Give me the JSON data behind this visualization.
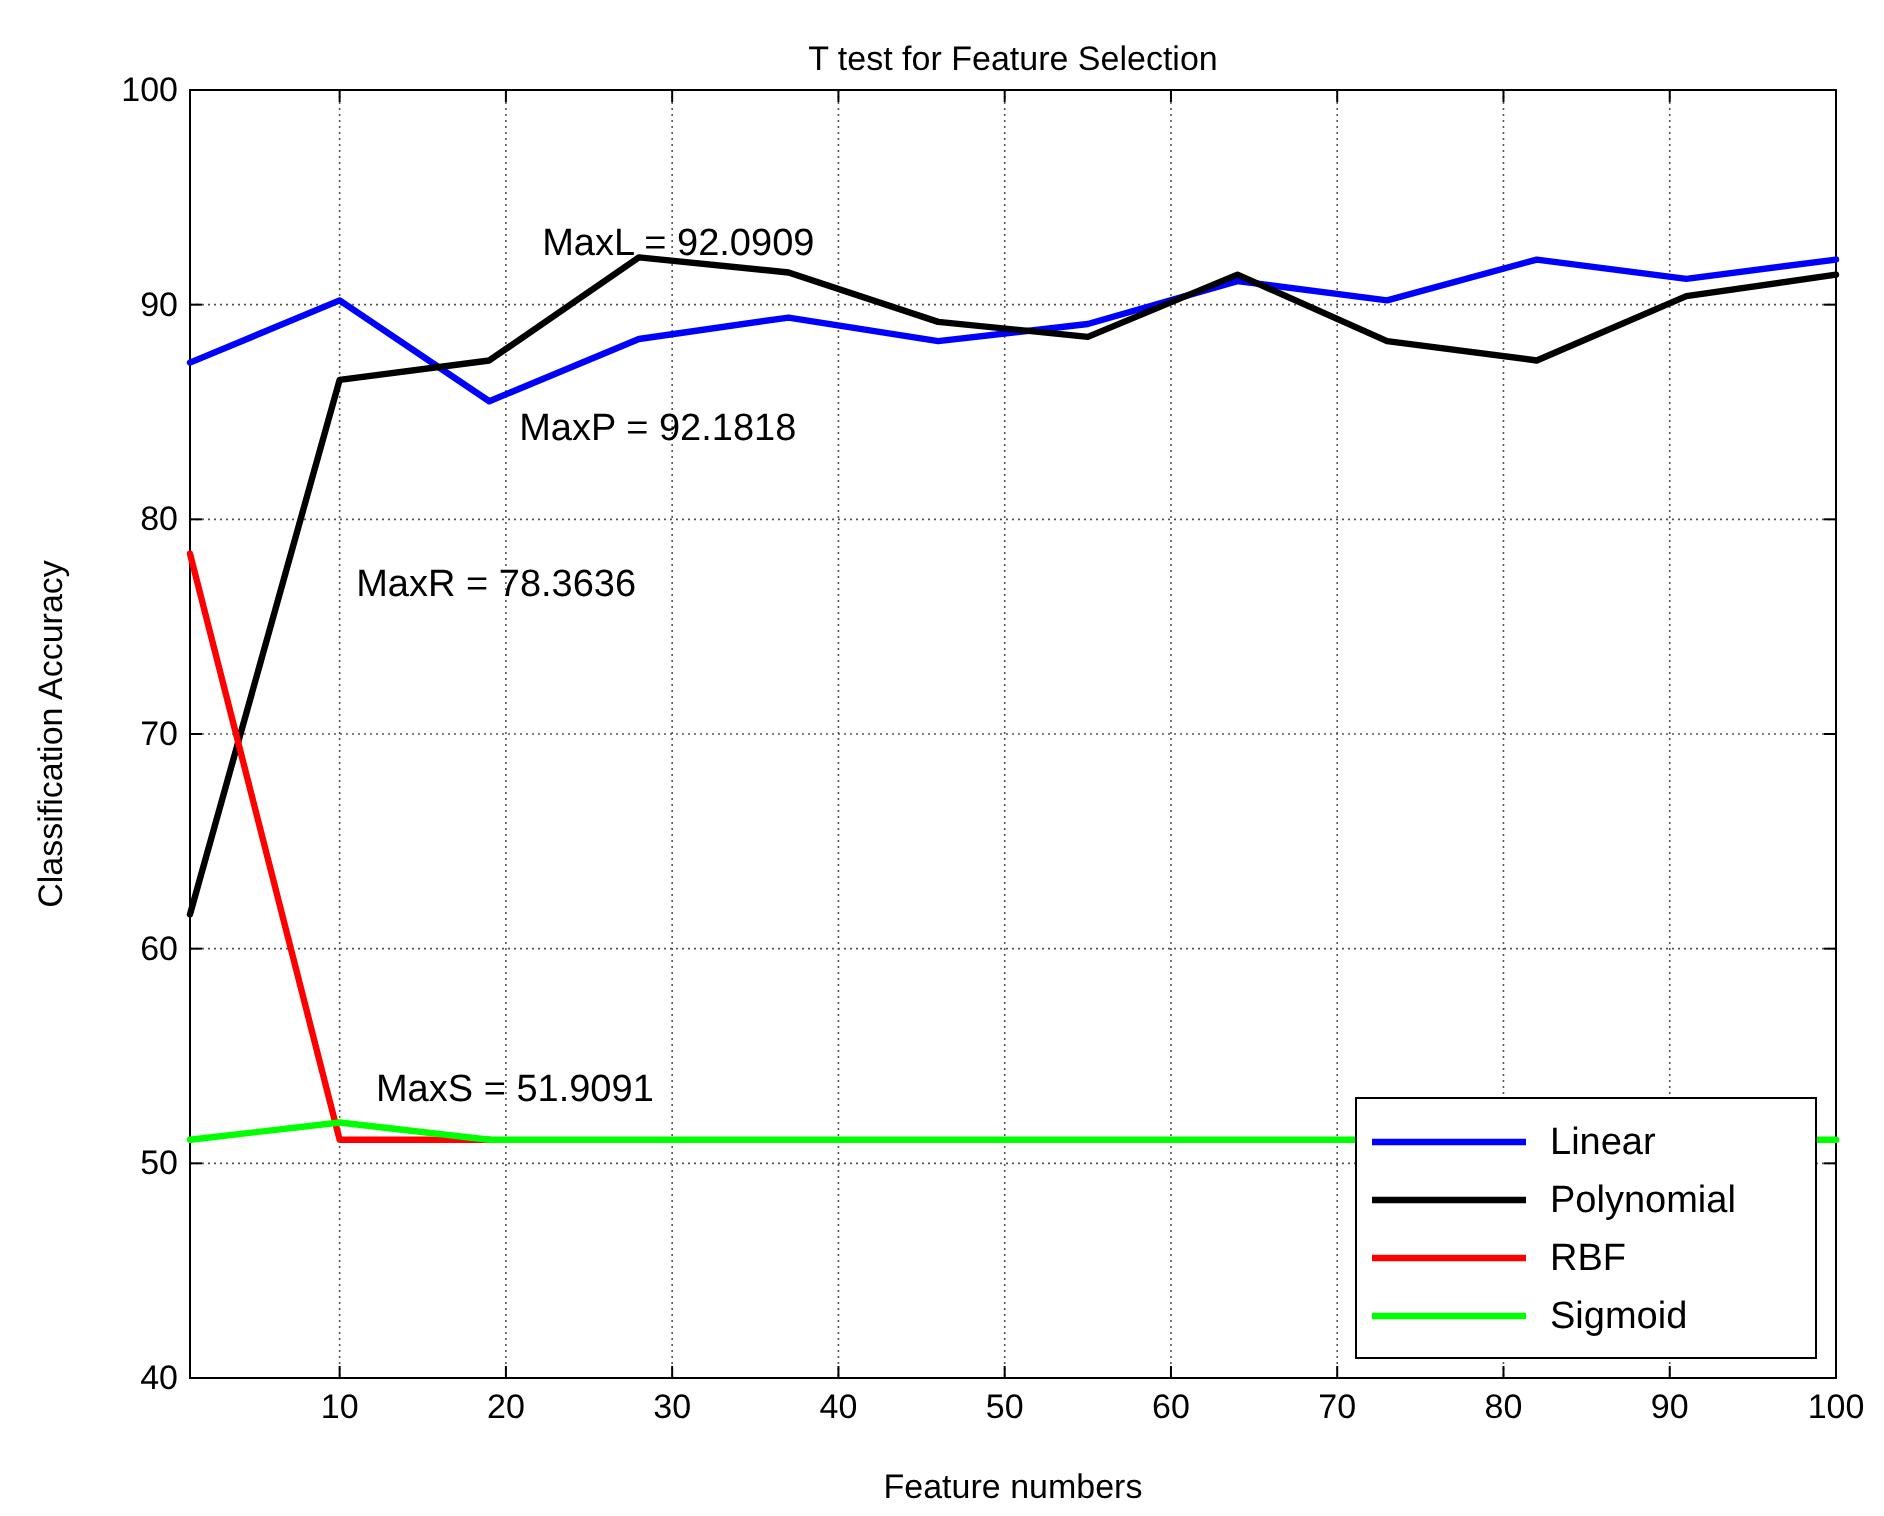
{
  "chart_data": {
    "type": "line",
    "title": "T test for Feature Selection",
    "xlabel": "Feature numbers",
    "ylabel": "Classification Accuracy",
    "x": [
      1,
      10,
      19,
      28,
      37,
      46,
      55,
      64,
      73,
      82,
      91,
      100
    ],
    "xlim": [
      1,
      100
    ],
    "xticks": [
      10,
      20,
      30,
      40,
      50,
      60,
      70,
      80,
      90,
      100
    ],
    "ylim": [
      40,
      100
    ],
    "yticks": [
      40,
      50,
      60,
      70,
      80,
      90,
      100
    ],
    "grid": true,
    "legend": "bottom right",
    "line_style": "solid",
    "marker": "none",
    "series": [
      {
        "name": "Linear",
        "color": "#0000ff",
        "values": [
          87.3,
          90.2,
          85.5,
          88.4,
          89.4,
          88.3,
          89.1,
          91.1,
          90.2,
          92.1,
          91.2,
          92.1
        ]
      },
      {
        "name": "Polynomial",
        "color": "#000000",
        "values": [
          61.6,
          86.5,
          87.4,
          92.2,
          91.5,
          89.2,
          88.5,
          91.4,
          88.3,
          87.4,
          90.4,
          91.4
        ]
      },
      {
        "name": "RBF",
        "color": "#ff0000",
        "values": [
          78.4,
          51.1,
          51.1,
          null,
          null,
          null,
          null,
          null,
          null,
          null,
          null,
          null
        ]
      },
      {
        "name": "Sigmoid",
        "color": "#00ff00",
        "values": [
          51.1,
          51.9,
          51.1,
          51.1,
          51.1,
          51.1,
          51.1,
          51.1,
          null,
          null,
          null,
          51.1
        ]
      }
    ],
    "annotations": [
      "MaxL = 92.0909",
      "MaxP = 92.1818",
      "MaxR = 78.3636",
      "MaxS = 51.9091"
    ]
  }
}
